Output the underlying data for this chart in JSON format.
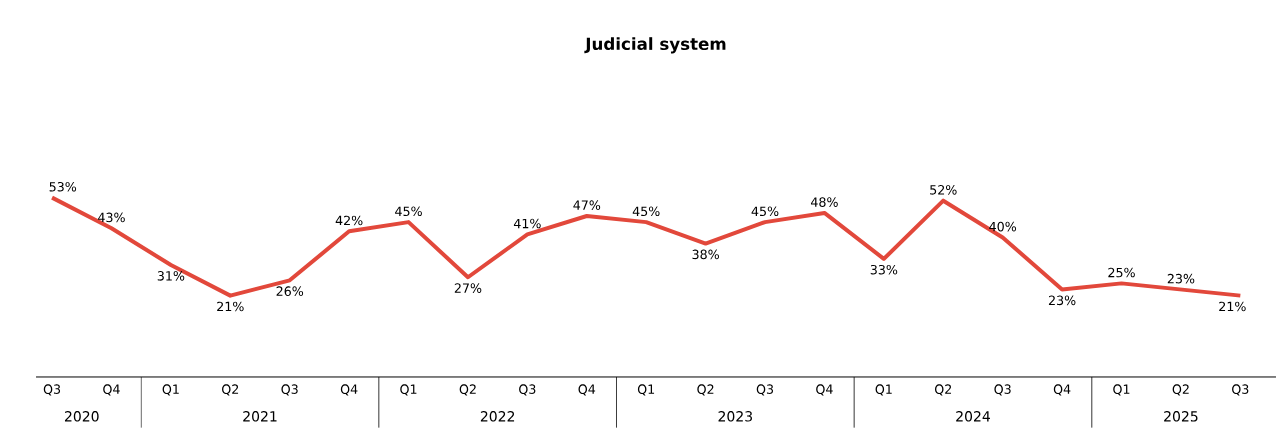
{
  "chart_data": {
    "type": "line",
    "title": "Judicial system",
    "categories": [
      "Q3",
      "Q4",
      "Q1",
      "Q2",
      "Q3",
      "Q4",
      "Q1",
      "Q2",
      "Q3",
      "Q4",
      "Q1",
      "Q2",
      "Q3",
      "Q4",
      "Q1",
      "Q2",
      "Q3",
      "Q4",
      "Q1",
      "Q2",
      "Q3"
    ],
    "values": [
      53,
      43,
      31,
      21,
      26,
      42,
      45,
      27,
      41,
      47,
      45,
      38,
      45,
      48,
      33,
      52,
      40,
      23,
      25,
      23,
      21
    ],
    "value_labels": [
      "53%",
      "43%",
      "31%",
      "21%",
      "26%",
      "42%",
      "45%",
      "27%",
      "41%",
      "47%",
      "45%",
      "38%",
      "45%",
      "48%",
      "33%",
      "52%",
      "40%",
      "23%",
      "25%",
      "23%",
      "21%"
    ],
    "color": "#e2483b",
    "tick_labels": "x",
    "marker": "none",
    "line_style": "solid",
    "annotations": [
      "2020",
      "2021",
      "2022",
      "2023",
      "2024",
      "2025"
    ]
  }
}
